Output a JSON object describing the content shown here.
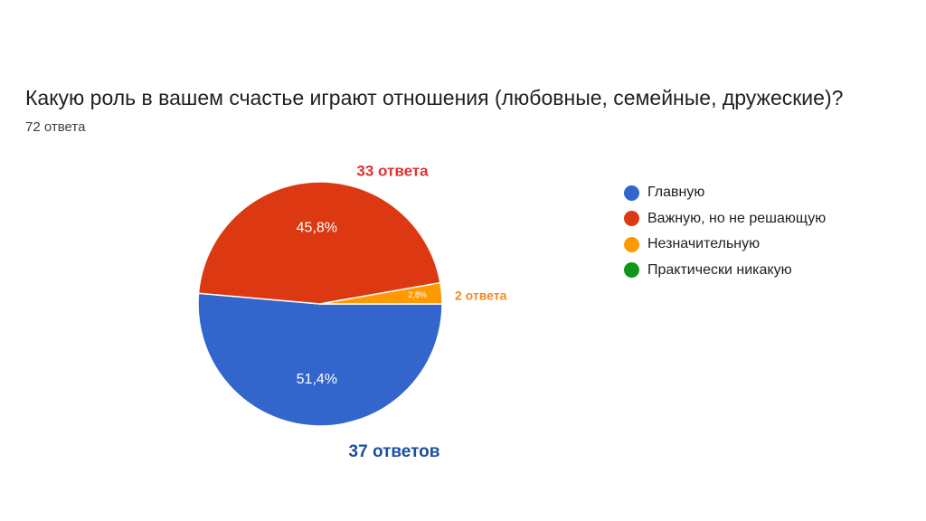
{
  "question": {
    "title": "Какую роль в вашем счастье играют отношения (любовные, семейные, дружеские)?",
    "response_count": "72 ответа"
  },
  "chart_data": {
    "type": "pie",
    "total": 72,
    "slices": [
      {
        "name": "Главную",
        "count": 37,
        "percent": 51.4,
        "percent_label": "51,4%",
        "count_label": "37 ответов",
        "color": "#3366cc",
        "label_color": "#1a4fa0"
      },
      {
        "name": "Важную, но не решающую",
        "count": 33,
        "percent": 45.8,
        "percent_label": "45,8%",
        "count_label": "33 ответа",
        "color": "#dc3912",
        "label_color": "#e03030"
      },
      {
        "name": "Незначительную",
        "count": 2,
        "percent": 2.8,
        "percent_label": "2,8%",
        "count_label": "2 ответа",
        "color": "#ff9900",
        "label_color": "#f08a24"
      },
      {
        "name": "Практически никакую",
        "count": 0,
        "percent": 0,
        "percent_label": "",
        "count_label": "",
        "color": "#109618",
        "label_color": "#109618"
      }
    ],
    "legend_position": "right"
  }
}
